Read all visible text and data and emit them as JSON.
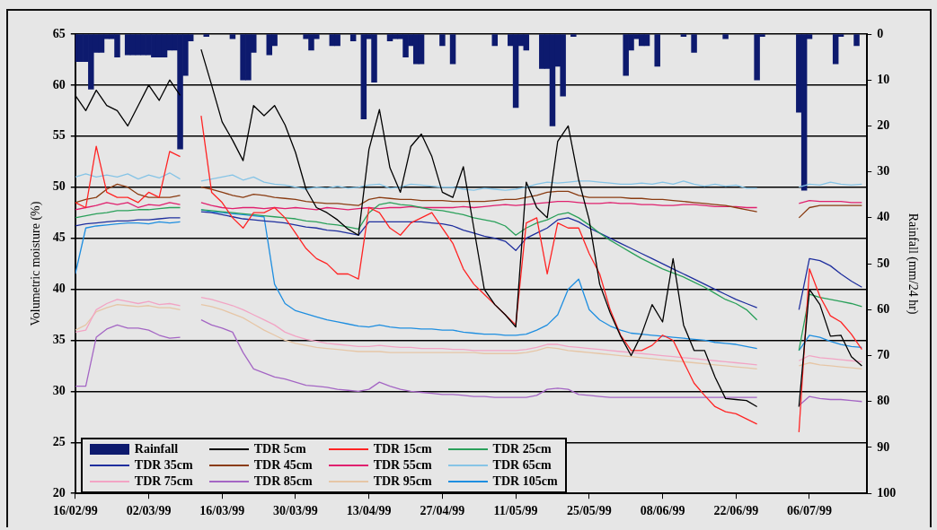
{
  "chart_data": {
    "type": "line",
    "ylabel": "Volumetric moisture (%)",
    "y2label": "Rainfall (mm/24 hr)",
    "x": [
      "1999-02-16",
      "1999-02-18",
      "1999-02-20",
      "1999-02-22",
      "1999-02-24",
      "1999-02-26",
      "1999-02-28",
      "1999-03-02",
      "1999-03-04",
      "1999-03-06",
      "1999-03-08",
      "1999-03-10",
      "1999-03-12",
      "1999-03-14",
      "1999-03-16",
      "1999-03-18",
      "1999-03-20",
      "1999-03-22",
      "1999-03-24",
      "1999-03-26",
      "1999-03-28",
      "1999-03-30",
      "1999-04-01",
      "1999-04-03",
      "1999-04-05",
      "1999-04-07",
      "1999-04-09",
      "1999-04-11",
      "1999-04-13",
      "1999-04-15",
      "1999-04-17",
      "1999-04-19",
      "1999-04-21",
      "1999-04-23",
      "1999-04-25",
      "1999-04-27",
      "1999-04-29",
      "1999-05-01",
      "1999-05-03",
      "1999-05-05",
      "1999-05-07",
      "1999-05-09",
      "1999-05-11",
      "1999-05-13",
      "1999-05-15",
      "1999-05-17",
      "1999-05-19",
      "1999-05-21",
      "1999-05-23",
      "1999-05-25",
      "1999-05-27",
      "1999-05-29",
      "1999-05-31",
      "1999-06-02",
      "1999-06-04",
      "1999-06-06",
      "1999-06-08",
      "1999-06-10",
      "1999-06-12",
      "1999-06-14",
      "1999-06-16",
      "1999-06-18",
      "1999-06-20",
      "1999-06-22",
      "1999-06-24",
      "1999-06-26",
      "1999-06-28",
      "1999-06-30",
      "1999-07-02",
      "1999-07-04",
      "1999-07-06",
      "1999-07-08",
      "1999-07-10",
      "1999-07-12",
      "1999-07-14",
      "1999-07-16"
    ],
    "series": [
      {
        "name": "Rainfall",
        "type": "bar",
        "axis": "y2",
        "color": "#0d1a6e",
        "x": [
          "1999-02-16",
          "1999-02-17",
          "1999-02-18",
          "1999-02-19",
          "1999-02-20",
          "1999-02-21",
          "1999-02-22",
          "1999-02-23",
          "1999-02-24",
          "1999-02-26",
          "1999-02-27",
          "1999-02-28",
          "1999-03-01",
          "1999-03-02",
          "1999-03-03",
          "1999-03-04",
          "1999-03-05",
          "1999-03-06",
          "1999-03-07",
          "1999-03-08",
          "1999-03-09",
          "1999-03-10",
          "1999-03-13",
          "1999-03-18",
          "1999-03-20",
          "1999-03-21",
          "1999-03-22",
          "1999-03-25",
          "1999-03-26",
          "1999-04-01",
          "1999-04-02",
          "1999-04-03",
          "1999-04-06",
          "1999-04-07",
          "1999-04-10",
          "1999-04-12",
          "1999-04-13",
          "1999-04-14",
          "1999-04-17",
          "1999-04-18",
          "1999-04-19",
          "1999-04-20",
          "1999-04-21",
          "1999-04-22",
          "1999-04-23",
          "1999-04-27",
          "1999-04-29",
          "1999-05-07",
          "1999-05-10",
          "1999-05-11",
          "1999-05-12",
          "1999-05-13",
          "1999-05-16",
          "1999-05-17",
          "1999-05-18",
          "1999-05-19",
          "1999-05-20",
          "1999-05-22",
          "1999-06-01",
          "1999-06-02",
          "1999-06-03",
          "1999-06-04",
          "1999-06-05",
          "1999-06-07",
          "1999-06-12",
          "1999-06-14",
          "1999-06-20",
          "1999-06-26",
          "1999-06-27",
          "1999-07-04",
          "1999-07-05",
          "1999-07-06",
          "1999-07-11",
          "1999-07-12",
          "1999-07-15"
        ],
        "values": [
          6,
          6,
          6,
          12,
          4,
          4,
          1,
          1,
          5,
          4.5,
          4.5,
          4.5,
          4.5,
          4.5,
          5,
          5,
          5,
          3.5,
          3.5,
          25,
          9,
          1.5,
          0.5,
          1,
          10,
          10,
          4,
          4.5,
          2.5,
          1,
          3.5,
          1,
          2.5,
          2.5,
          1.5,
          18.5,
          1,
          10.5,
          1.5,
          1,
          1,
          5,
          2.5,
          6.5,
          6.5,
          2.5,
          6.5,
          2.5,
          2.5,
          16,
          2.5,
          3.5,
          7.5,
          7.5,
          20,
          7,
          13.5,
          0.5,
          9,
          3.5,
          1,
          2.5,
          2.5,
          7,
          0.5,
          4,
          1,
          10,
          0.5,
          17,
          34,
          1,
          6.5,
          0.5,
          2.5
        ]
      },
      {
        "name": "TDR 5cm",
        "color": "#000000",
        "values": [
          59,
          57.5,
          59.5,
          58,
          57.5,
          56,
          58,
          60,
          58.5,
          60.5,
          59,
          null,
          63.5,
          60,
          56.4,
          54.6,
          52.6,
          58,
          57,
          58,
          56.1,
          53.4,
          49.8,
          48,
          47.5,
          46.8,
          45.9,
          45.3,
          53.7,
          57.6,
          51.9,
          49.5,
          54,
          55.2,
          53,
          49.5,
          49,
          52,
          46,
          40,
          38.5,
          37.5,
          36.3,
          50.5,
          48,
          47,
          54.5,
          56,
          50.7,
          46.8,
          40.5,
          37.7,
          35.4,
          33.5,
          35.6,
          38.5,
          36.8,
          43,
          36.5,
          34,
          34,
          31.4,
          29.3,
          29.2,
          29.1,
          28.5,
          null,
          null,
          null,
          28.5,
          40,
          38.5,
          35.4,
          35.5,
          33.4,
          32.5
        ]
      },
      {
        "name": "TDR 15cm",
        "color": "#ff2424",
        "values": [
          48.5,
          48,
          54,
          49.5,
          49,
          49,
          48.5,
          49.5,
          49,
          53.5,
          53,
          null,
          57,
          49.5,
          48.5,
          47,
          46,
          47.5,
          47.5,
          48,
          47,
          45.5,
          44,
          43,
          42.5,
          41.5,
          41.5,
          41,
          48,
          47.5,
          46,
          45.3,
          46.5,
          47,
          47.5,
          46,
          44.5,
          42,
          40.5,
          39.5,
          38.5,
          37.5,
          36.5,
          46.5,
          47,
          41.5,
          46.5,
          46,
          46,
          43.5,
          41.5,
          38,
          35.5,
          34,
          34,
          34.5,
          35.5,
          35,
          32.9,
          30.8,
          29.6,
          28.5,
          28,
          27.8,
          27.3,
          26.8,
          null,
          null,
          null,
          26,
          42,
          39.3,
          37.4,
          36.8,
          35.6,
          34.1
        ]
      },
      {
        "name": "TDR 25cm",
        "color": "#2aa05a",
        "values": [
          47,
          47.2,
          47.4,
          47.5,
          47.7,
          47.7,
          47.8,
          47.8,
          47.9,
          48,
          48,
          null,
          47.8,
          47.7,
          47.6,
          47.5,
          47.4,
          47.3,
          47.2,
          47.1,
          47,
          46.9,
          46.7,
          46.6,
          46.4,
          46.3,
          46.1,
          45.9,
          47.5,
          48.3,
          48.5,
          48.3,
          48.2,
          48,
          47.8,
          47.7,
          47.5,
          47.3,
          47,
          46.8,
          46.6,
          46.2,
          45.3,
          46,
          46.5,
          46.8,
          47.3,
          47.5,
          47,
          46.3,
          45.5,
          44.8,
          44.2,
          43.6,
          43,
          42.5,
          42,
          41.6,
          41.2,
          40.7,
          40.2,
          39.6,
          39,
          38.6,
          38,
          37,
          null,
          null,
          null,
          34,
          39.5,
          39.2,
          39,
          38.8,
          38.6,
          38.3
        ]
      },
      {
        "name": "TDR 35cm",
        "color": "#1f2f9e",
        "values": [
          46.2,
          46.4,
          46.5,
          46.6,
          46.7,
          46.7,
          46.8,
          46.8,
          46.9,
          47,
          47,
          null,
          47.6,
          47.5,
          47.3,
          47.1,
          46.9,
          46.8,
          46.7,
          46.6,
          46.5,
          46.3,
          46.1,
          46,
          45.8,
          45.7,
          45.5,
          45.3,
          46.6,
          46.6,
          46.6,
          46.6,
          46.6,
          46.6,
          46.5,
          46.4,
          46.2,
          45.8,
          45.5,
          45.2,
          45,
          44.7,
          43.8,
          45,
          45.5,
          46,
          46.8,
          47,
          46.6,
          46,
          45.5,
          45,
          44.5,
          44,
          43.5,
          43,
          42.5,
          42,
          41.5,
          41,
          40.5,
          40,
          39.5,
          39,
          38.6,
          38.2,
          null,
          null,
          null,
          38,
          43,
          42.8,
          42.3,
          41.5,
          40.8,
          40.2
        ]
      },
      {
        "name": "TDR 45cm",
        "color": "#8a3c12",
        "values": [
          48.5,
          48.8,
          49,
          49.8,
          50.3,
          50,
          49.3,
          49,
          49,
          49,
          49.2,
          null,
          50,
          49.8,
          49.5,
          49.2,
          49,
          49.3,
          49.2,
          49,
          48.9,
          48.8,
          48.6,
          48.5,
          48.4,
          48.4,
          48.3,
          48.2,
          48.8,
          49,
          48.9,
          48.8,
          48.8,
          48.7,
          48.7,
          48.7,
          48.6,
          48.6,
          48.6,
          48.6,
          48.7,
          48.8,
          48.8,
          49,
          49.2,
          49.5,
          49.6,
          49.6,
          49.2,
          49,
          49,
          49,
          49,
          48.9,
          48.9,
          48.8,
          48.8,
          48.7,
          48.6,
          48.5,
          48.4,
          48.3,
          48.2,
          48,
          47.8,
          47.6,
          null,
          null,
          null,
          47,
          48,
          48.2,
          48.2,
          48.2,
          48.2,
          48.2
        ]
      },
      {
        "name": "TDR 55cm",
        "color": "#e0206e",
        "values": [
          47.8,
          48,
          48.2,
          48.5,
          48.3,
          48.5,
          48,
          48.3,
          48.2,
          48.5,
          48.3,
          null,
          48.5,
          48.2,
          48,
          47.9,
          48,
          48,
          47.9,
          48,
          47.9,
          48,
          47.9,
          47.8,
          48,
          47.9,
          47.8,
          47.9,
          48,
          47.9,
          48,
          48,
          48.1,
          48,
          48,
          48,
          48,
          48.1,
          48,
          48.1,
          48.2,
          48.3,
          48.2,
          48.3,
          48.4,
          48.5,
          48.6,
          48.6,
          48.5,
          48.4,
          48.4,
          48.5,
          48.4,
          48.4,
          48.3,
          48.3,
          48.2,
          48.2,
          48.3,
          48.3,
          48.2,
          48.1,
          48.1,
          48.1,
          48,
          48,
          null,
          null,
          null,
          48.4,
          48.7,
          48.6,
          48.6,
          48.6,
          48.5,
          48.5
        ]
      },
      {
        "name": "TDR 65cm",
        "color": "#86c4e6",
        "values": [
          51,
          51.3,
          51,
          51.2,
          51,
          51.3,
          50.8,
          51.2,
          50.9,
          51.4,
          50.8,
          null,
          50.6,
          50.8,
          51,
          51.2,
          50.7,
          51,
          50.5,
          50.3,
          50.2,
          50,
          49.8,
          50,
          49.9,
          50.1,
          49.9,
          50,
          50.2,
          50.3,
          49.9,
          50,
          50.3,
          50.2,
          50.1,
          50,
          50,
          49.8,
          49.7,
          49.9,
          49.8,
          49.7,
          49.8,
          50,
          50.3,
          50.5,
          50.4,
          50.5,
          50.6,
          50.6,
          50.5,
          50.4,
          50.3,
          50.3,
          50.4,
          50.3,
          50.5,
          50.3,
          50.6,
          50.3,
          50.1,
          50.3,
          50.1,
          50.2,
          49.9,
          49.9,
          null,
          null,
          null,
          50,
          50.3,
          50.2,
          50.5,
          50.3,
          50.2,
          50.3
        ]
      },
      {
        "name": "TDR 75cm",
        "color": "#f2a4c4",
        "values": [
          35.8,
          36,
          38,
          38.6,
          39,
          38.8,
          38.6,
          38.8,
          38.5,
          38.6,
          38.4,
          null,
          39.2,
          39,
          38.7,
          38.4,
          38,
          37.5,
          37,
          36.5,
          35.8,
          35.4,
          35.1,
          34.9,
          34.7,
          34.6,
          34.5,
          34.4,
          34.4,
          34.5,
          34.4,
          34.3,
          34.3,
          34.2,
          34.2,
          34.2,
          34.1,
          34.1,
          34,
          34,
          34,
          34,
          34,
          34.1,
          34.3,
          34.6,
          34.6,
          34.4,
          34.3,
          34.2,
          34.1,
          34,
          33.9,
          33.8,
          33.7,
          33.6,
          33.5,
          33.4,
          33.3,
          33.2,
          33.1,
          33,
          32.9,
          32.8,
          32.7,
          32.6,
          null,
          null,
          null,
          33,
          33.5,
          33.3,
          33.2,
          33.1,
          33,
          32.9
        ]
      },
      {
        "name": "TDR 85cm",
        "color": "#a466c4",
        "values": [
          30.5,
          30.5,
          35.3,
          36.1,
          36.5,
          36.2,
          36.2,
          36,
          35.5,
          35.2,
          35.3,
          null,
          37,
          36.5,
          36.2,
          35.8,
          33.8,
          32.2,
          31.8,
          31.4,
          31.2,
          30.9,
          30.6,
          30.5,
          30.4,
          30.2,
          30.1,
          30,
          30.2,
          30.9,
          30.5,
          30.2,
          30,
          29.9,
          29.8,
          29.7,
          29.7,
          29.6,
          29.5,
          29.5,
          29.4,
          29.4,
          29.4,
          29.4,
          29.6,
          30.2,
          30.3,
          30.2,
          29.7,
          29.6,
          29.5,
          29.4,
          29.4,
          29.4,
          29.4,
          29.4,
          29.4,
          29.4,
          29.4,
          29.4,
          29.4,
          29.4,
          29.4,
          29.4,
          29.4,
          29.4,
          null,
          null,
          null,
          28.6,
          29.5,
          29.3,
          29.2,
          29.2,
          29.1,
          29
        ]
      },
      {
        "name": "TDR 95cm",
        "color": "#e6c6a6",
        "values": [
          36,
          36.5,
          37.8,
          38.2,
          38.5,
          38.4,
          38.3,
          38.4,
          38.2,
          38.2,
          38,
          null,
          38.5,
          38.3,
          38,
          37.6,
          37.2,
          36.6,
          36,
          35.5,
          35,
          34.7,
          34.5,
          34.3,
          34.2,
          34.1,
          34,
          33.9,
          33.9,
          33.9,
          33.8,
          33.8,
          33.8,
          33.8,
          33.8,
          33.8,
          33.8,
          33.8,
          33.8,
          33.7,
          33.7,
          33.7,
          33.7,
          33.8,
          34,
          34.3,
          34.2,
          34,
          33.9,
          33.8,
          33.7,
          33.6,
          33.5,
          33.4,
          33.3,
          33.2,
          33.1,
          33,
          32.9,
          32.8,
          32.7,
          32.6,
          32.5,
          32.4,
          32.3,
          32.2,
          null,
          null,
          null,
          32.5,
          32.8,
          32.6,
          32.5,
          32.4,
          32.3,
          32.2
        ]
      },
      {
        "name": "TDR 105cm",
        "color": "#1e8ee0",
        "values": [
          41.5,
          46,
          46.2,
          46.3,
          46.4,
          46.5,
          46.5,
          46.4,
          46.6,
          46.5,
          46.6,
          null,
          47.8,
          47.6,
          47.5,
          47.4,
          47.3,
          47.2,
          47.1,
          40.5,
          38.6,
          37.9,
          37.6,
          37.3,
          37,
          36.8,
          36.6,
          36.4,
          36.3,
          36.5,
          36.3,
          36.2,
          36.2,
          36.1,
          36.1,
          36,
          36,
          35.8,
          35.7,
          35.6,
          35.6,
          35.5,
          35.5,
          35.6,
          36,
          36.5,
          37.5,
          40,
          41,
          38,
          37,
          36.4,
          36,
          35.7,
          35.6,
          35.5,
          35.4,
          35.3,
          35.2,
          35.1,
          35,
          34.8,
          34.7,
          34.6,
          34.4,
          34.2,
          null,
          null,
          null,
          34,
          35.5,
          35.3,
          34.9,
          34.6,
          34.4,
          34.3
        ]
      }
    ],
    "xlim": [
      "1999-02-16",
      "1999-07-17"
    ],
    "xticks": [
      {
        "value": "1999-02-16",
        "label": "16/02/99"
      },
      {
        "value": "1999-03-02",
        "label": "02/03/99"
      },
      {
        "value": "1999-03-16",
        "label": "16/03/99"
      },
      {
        "value": "1999-03-30",
        "label": "30/03/99"
      },
      {
        "value": "1999-04-13",
        "label": "13/04/99"
      },
      {
        "value": "1999-04-27",
        "label": "27/04/99"
      },
      {
        "value": "1999-05-11",
        "label": "11/05/99"
      },
      {
        "value": "1999-05-25",
        "label": "25/05/99"
      },
      {
        "value": "1999-06-08",
        "label": "08/06/99"
      },
      {
        "value": "1999-06-22",
        "label": "22/06/99"
      },
      {
        "value": "1999-07-06",
        "label": "06/07/99"
      }
    ],
    "ylim": [
      20,
      65
    ],
    "yticks": [
      20,
      25,
      30,
      35,
      40,
      45,
      50,
      55,
      60,
      65
    ],
    "y2lim": [
      100,
      0
    ],
    "y2ticks": [
      0,
      10,
      20,
      30,
      40,
      50,
      60,
      70,
      80,
      90,
      100
    ],
    "grid": "y",
    "legend": "bottom left"
  }
}
